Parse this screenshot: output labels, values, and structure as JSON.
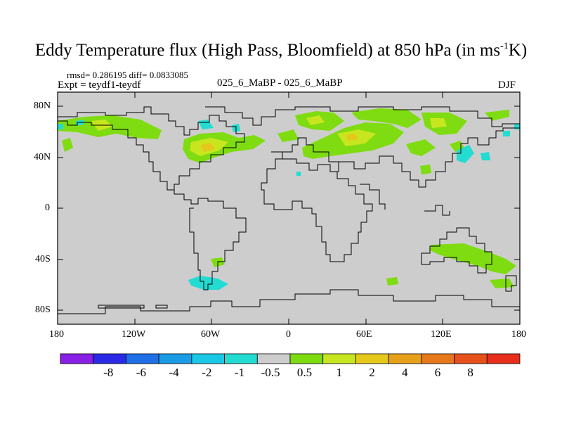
{
  "title": {
    "main": "Eddy Temperature flux (High Pass, Bloomfield) at 850 hPa (in ms",
    "sup": "-1",
    "end": "K)"
  },
  "stats": {
    "rmsd": "rmsd= 0.286195 diff= 0.0833085",
    "expt": "Expt = teydf1-teydf"
  },
  "case_label": "025_6_MaBP - 025_6_MaBP",
  "season": "DJF",
  "axes": {
    "y_ticks": [
      "80N",
      "40N",
      "0",
      "40S",
      "80S"
    ],
    "x_ticks": [
      "180",
      "120W",
      "60W",
      "0",
      "60E",
      "120E",
      "180"
    ]
  },
  "colorbar": {
    "colors": [
      "#8a1fe6",
      "#2a2ae6",
      "#1f6fe6",
      "#1a9be6",
      "#1ac8e6",
      "#22dcd2",
      "#cdcdcd",
      "#7fdc10",
      "#c8e620",
      "#e6c81a",
      "#e6a01a",
      "#e6781a",
      "#e6501a",
      "#e62e1a"
    ],
    "labels": [
      "-8",
      "-6",
      "-4",
      "-2",
      "-1",
      "-0.5",
      "0.5",
      "1",
      "2",
      "4",
      "6",
      "8"
    ]
  },
  "map": {
    "background": "#cdcdcd",
    "coast_color": "#000000"
  }
}
